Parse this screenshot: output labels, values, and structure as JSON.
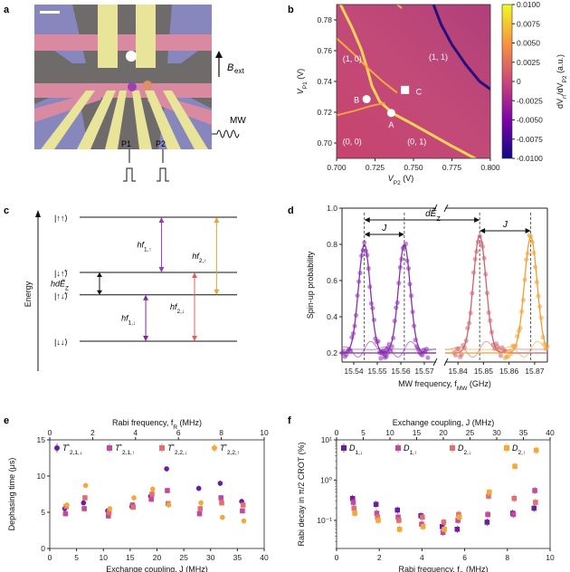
{
  "panel_labels": {
    "a": "a",
    "b": "b",
    "c": "c",
    "d": "d",
    "e": "e",
    "f": "f"
  },
  "panel_a": {
    "bext_label": "B",
    "bext_sub": "ext",
    "mw_label": "MW",
    "p1_label": "P1",
    "p2_label": "P2",
    "colors": {
      "gate_yellow": "#e8e49a",
      "gate_pink": "#d98aa0",
      "gate_blue": "#8c8ccc",
      "dot_purple": "#9b3fb5",
      "dot_orange": "#e09060"
    }
  },
  "chart_data": [
    {
      "panel": "b",
      "type": "heatmap",
      "xlabel": "V",
      "xlabel_sub": "P2",
      "xlabel_unit": " (V)",
      "ylabel": "V",
      "ylabel_sub": "P1",
      "ylabel_unit": " (V)",
      "xlim": [
        0.7,
        0.8
      ],
      "ylim": [
        0.69,
        0.79
      ],
      "x_ticks": [
        {
          "v": 0.7,
          "label": "0.700"
        },
        {
          "v": 0.725,
          "label": "0.725"
        },
        {
          "v": 0.75,
          "label": "0.750"
        },
        {
          "v": 0.775,
          "label": "0.775"
        },
        {
          "v": 0.8,
          "label": "0.800"
        }
      ],
      "y_ticks": [
        {
          "v": 0.7,
          "label": "0.70"
        },
        {
          "v": 0.72,
          "label": "0.72"
        },
        {
          "v": 0.74,
          "label": "0.74"
        },
        {
          "v": 0.76,
          "label": "0.76"
        },
        {
          "v": 0.78,
          "label": "0.78"
        }
      ],
      "colorbar": {
        "label": "dV",
        "label_sub": "rf",
        "label_tail": "/dV",
        "label_sub2": "P2",
        "label_unit": " (a.u.)",
        "min": -0.01,
        "max": 0.01,
        "ticks": [
          {
            "v": 0.01,
            "label": "0.0100"
          },
          {
            "v": 0.0075,
            "label": "0.0075"
          },
          {
            "v": 0.005,
            "label": "0.0050"
          },
          {
            "v": 0.0025,
            "label": "0.0025"
          },
          {
            "v": 0.0,
            "label": "0"
          },
          {
            "v": -0.0025,
            "label": "-0.0025"
          },
          {
            "v": -0.005,
            "label": "-0.0050"
          },
          {
            "v": -0.0075,
            "label": "-0.0075"
          },
          {
            "v": -0.01,
            "label": "-0.0100"
          }
        ]
      },
      "regions": [
        {
          "label": "(1, 0)",
          "x": 0.704,
          "y": 0.753
        },
        {
          "label": "(1, 1)",
          "x": 0.76,
          "y": 0.754
        },
        {
          "label": "(0, 0)",
          "x": 0.704,
          "y": 0.699
        },
        {
          "label": "(0, 1)",
          "x": 0.746,
          "y": 0.699
        }
      ],
      "markers": [
        {
          "label": "A",
          "x": 0.7355,
          "y": 0.7195,
          "shape": "circle",
          "label_dx": -3,
          "label_dy": 16
        },
        {
          "label": "B",
          "x": 0.7195,
          "y": 0.7285,
          "shape": "circle",
          "label_dx": -14,
          "label_dy": 4
        },
        {
          "label": "C",
          "x": 0.7445,
          "y": 0.7345,
          "shape": "square",
          "label_dx": 12,
          "label_dy": 5
        }
      ],
      "lines": [
        {
          "color": "#f5d35a",
          "width": 3,
          "points": [
            [
              0.7025,
              0.79
            ],
            [
              0.71,
              0.775
            ],
            [
              0.716,
              0.761
            ],
            [
              0.72,
              0.748
            ],
            [
              0.723,
              0.737
            ],
            [
              0.728,
              0.727
            ],
            [
              0.737,
              0.719
            ],
            [
              0.75,
              0.712
            ],
            [
              0.775,
              0.698
            ],
            [
              0.79,
              0.69
            ]
          ]
        },
        {
          "color": "#f4a83e",
          "width": 2,
          "points": [
            [
              0.7,
              0.768
            ],
            [
              0.71,
              0.759
            ],
            [
              0.72,
              0.749
            ],
            [
              0.73,
              0.74
            ],
            [
              0.739,
              0.733
            ]
          ]
        },
        {
          "color": "#f4a040",
          "width": 2,
          "points": [
            [
              0.7,
              0.718
            ],
            [
              0.712,
              0.721
            ],
            [
              0.722,
              0.724
            ],
            [
              0.731,
              0.726
            ]
          ]
        },
        {
          "color": "#f6b65a",
          "width": 2,
          "points": [
            [
              0.7395,
              0.79
            ],
            [
              0.741,
              0.7887
            ],
            [
              0.742,
              0.788
            ]
          ]
        },
        {
          "color": "#2a0f7a",
          "width": 3,
          "points": [
            [
              0.763,
              0.79
            ],
            [
              0.768,
              0.777
            ],
            [
              0.775,
              0.764
            ],
            [
              0.784,
              0.751
            ],
            [
              0.793,
              0.74
            ],
            [
              0.8,
              0.735
            ]
          ]
        }
      ]
    },
    {
      "panel": "c",
      "type": "diagram",
      "ylabel": "Energy",
      "levels": [
        {
          "ket": "|↑↑⟩",
          "y": 0.0
        },
        {
          "ket": "|↓↑̃⟩",
          "y": 0.37
        },
        {
          "ket": "|↑↓̃⟩",
          "y": 0.52
        },
        {
          "ket": "|↓↓⟩",
          "y": 0.83
        }
      ],
      "transitions": [
        {
          "label": "hf",
          "sub": "1,↑",
          "color": "#9b3fb5",
          "from": 0,
          "to": 1,
          "x": 0.52
        },
        {
          "label": "hf",
          "sub": "2,↑",
          "color": "#f0a030",
          "from": 0,
          "to": 2,
          "x": 0.87
        },
        {
          "label": "hf",
          "sub": "1,↓",
          "color": "#7a2a98",
          "from": 2,
          "to": 3,
          "x": 0.42
        },
        {
          "label": "hf",
          "sub": "2,↓",
          "color": "#e06060",
          "from": 1,
          "to": 3,
          "x": 0.73
        }
      ],
      "splitting_label": "hdẼ",
      "splitting_sub": "Z"
    },
    {
      "panel": "d",
      "type": "scatter",
      "ylabel": "Spin-up probability",
      "xlabel": "MW frequency, f",
      "xlabel_sub": "MW",
      "xlabel_unit": " (GHz)",
      "ylim": [
        0.15,
        1.0
      ],
      "y_ticks": [
        0.2,
        0.4,
        0.6,
        0.8,
        1.0
      ],
      "left_range": [
        15.535,
        15.575
      ],
      "right_range": [
        15.835,
        15.875
      ],
      "x_ticks_left": [
        {
          "v": 15.54,
          "label": "15.54"
        },
        {
          "v": 15.55,
          "label": "15.55"
        },
        {
          "v": 15.56,
          "label": "15.56"
        },
        {
          "v": 15.57,
          "label": "15.57"
        }
      ],
      "x_ticks_right": [
        {
          "v": 15.84,
          "label": "15.84"
        },
        {
          "v": 15.85,
          "label": "15.85"
        },
        {
          "v": 15.86,
          "label": "15.86"
        },
        {
          "v": 15.87,
          "label": "15.87"
        }
      ],
      "dashed_lines": [
        15.5445,
        15.5615,
        15.8485,
        15.8685
      ],
      "annotations": [
        {
          "label": "dẼ",
          "sub": "Z",
          "from": 15.5445,
          "to": 15.8485,
          "y": 0.935
        },
        {
          "label": "J",
          "from": 15.5445,
          "to": 15.5615,
          "y": 0.855
        },
        {
          "label": "J",
          "from": 15.8485,
          "to": 15.8685,
          "y": 0.875
        }
      ],
      "series": [
        {
          "name": "",
          "color": "#8b2fae",
          "center": 15.5445,
          "amp": 0.8,
          "width": 0.0025,
          "side": "left"
        },
        {
          "name": "",
          "color": "#8b2fae",
          "center": 15.5615,
          "amp": 0.8,
          "width": 0.0025,
          "side": "left"
        },
        {
          "name": "",
          "color": "#d06070",
          "center": 15.8485,
          "amp": 0.85,
          "width": 0.0025,
          "side": "right"
        },
        {
          "name": "",
          "color": "#f0a030",
          "center": 15.8685,
          "amp": 0.84,
          "width": 0.0025,
          "side": "right"
        }
      ]
    },
    {
      "panel": "e",
      "type": "scatter",
      "top_xlabel": "Rabi frequency, f",
      "top_xlabel_sub": "R",
      "top_xlabel_unit": " (MHz)",
      "xlabel": "Exchange coupling, J",
      "xlabel_unit": " (MHz)",
      "ylabel": "Dephasing time (μs)",
      "xlim": [
        0,
        40
      ],
      "ylim": [
        0,
        15
      ],
      "top_xlim": [
        0,
        10
      ],
      "x_ticks": [
        0,
        5,
        10,
        15,
        20,
        25,
        30,
        35,
        40
      ],
      "top_x_ticks": [
        0,
        2,
        4,
        6,
        8,
        10
      ],
      "y_ticks": [
        0,
        5,
        10,
        15
      ],
      "legend": [
        {
          "label": "T",
          "sup": "*",
          "sub": "2,1,↓",
          "color": "#6a1f9e",
          "shape": "circle"
        },
        {
          "label": "T",
          "sup": "*",
          "sub": "2,1,↑",
          "color": "#c04aa0",
          "shape": "square"
        },
        {
          "label": "T",
          "sup": "*",
          "sub": "2,2,↓",
          "color": "#e07070",
          "shape": "square"
        },
        {
          "label": "T",
          "sup": "*",
          "sub": "2,2,↑",
          "color": "#f2a83a",
          "shape": "circle"
        }
      ],
      "series": [
        {
          "color": "#6a1f9e",
          "shape": "circle",
          "points": [
            [
              3,
              5.5
            ],
            [
              6.5,
              6.3
            ],
            [
              11,
              5.2
            ],
            [
              15.5,
              5.8
            ],
            [
              19,
              7.2
            ],
            [
              22,
              11.0
            ],
            [
              28,
              8.3
            ],
            [
              32,
              9.0
            ],
            [
              36,
              6.5
            ]
          ]
        },
        {
          "color": "#c04aa0",
          "shape": "square",
          "points": [
            [
              3,
              4.8
            ],
            [
              6.5,
              5.5
            ],
            [
              11,
              4.5
            ],
            [
              15.5,
              6.0
            ],
            [
              19,
              6.8
            ],
            [
              22,
              8.0
            ],
            [
              28,
              4.8
            ],
            [
              32,
              7.0
            ],
            [
              36,
              5.2
            ]
          ]
        },
        {
          "color": "#e07070",
          "shape": "square",
          "points": [
            [
              3,
              5.8
            ],
            [
              6.5,
              7.0
            ],
            [
              11,
              5.0
            ],
            [
              15.5,
              5.7
            ],
            [
              19,
              7.5
            ],
            [
              22,
              6.2
            ],
            [
              28,
              5.5
            ],
            [
              32,
              6.3
            ],
            [
              36,
              6.0
            ]
          ]
        },
        {
          "color": "#f2a83a",
          "shape": "circle",
          "points": [
            [
              3,
              6.0
            ],
            [
              6.5,
              8.7
            ],
            [
              11,
              5.5
            ],
            [
              15.5,
              7.0
            ],
            [
              19,
              8.2
            ],
            [
              22,
              6.0
            ],
            [
              28,
              6.3
            ],
            [
              32,
              4.3
            ],
            [
              36,
              3.8
            ]
          ]
        }
      ]
    },
    {
      "panel": "f",
      "type": "scatter",
      "top_xlabel": "Exchange coupling, J",
      "top_xlabel_unit": " (MHz)",
      "xlabel": "Rabi frequency, f",
      "xlabel_sub": "R",
      "xlabel_unit": " (MHz)",
      "ylabel": "Rabi decay in π/2 CROT (%)",
      "xlim": [
        0,
        10
      ],
      "top_xlim": [
        0,
        40
      ],
      "ylog": true,
      "ylim": [
        0.02,
        10
      ],
      "x_ticks": [
        0,
        2,
        4,
        6,
        8,
        10
      ],
      "top_x_ticks": [
        0,
        5,
        10,
        15,
        20,
        25,
        30,
        35,
        40
      ],
      "y_ticks": [
        {
          "v": 0.1,
          "label": "10⁻¹"
        },
        {
          "v": 1,
          "label": "10⁰"
        },
        {
          "v": 10,
          "label": "10¹"
        }
      ],
      "legend": [
        {
          "label": "D",
          "sub": "1,↓",
          "color": "#6a1f9e",
          "shape": "square"
        },
        {
          "label": "D",
          "sub": "1,↑",
          "color": "#c04aa0",
          "shape": "square"
        },
        {
          "label": "D",
          "sub": "2,↓",
          "color": "#e07070",
          "shape": "square"
        },
        {
          "label": "D",
          "sub": "2,↑",
          "color": "#f2a83a",
          "shape": "square"
        }
      ],
      "series": [
        {
          "color": "#6a1f9e",
          "shape": "square",
          "points": [
            [
              0.8,
              0.35
            ],
            [
              1.9,
              0.25
            ],
            [
              2.9,
              0.18
            ],
            [
              4.0,
              0.13
            ],
            [
              5.0,
              0.07
            ],
            [
              5.7,
              0.06
            ],
            [
              7.1,
              0.09
            ],
            [
              8.3,
              0.15
            ],
            [
              9.3,
              0.2
            ]
          ]
        },
        {
          "color": "#c04aa0",
          "shape": "square",
          "points": [
            [
              0.8,
              0.28
            ],
            [
              1.9,
              0.15
            ],
            [
              2.9,
              0.12
            ],
            [
              4.0,
              0.08
            ],
            [
              5.0,
              0.05
            ],
            [
              5.7,
              0.1
            ],
            [
              7.1,
              0.14
            ],
            [
              8.3,
              0.14
            ],
            [
              9.3,
              0.55
            ]
          ]
        },
        {
          "color": "#e07070",
          "shape": "square",
          "points": [
            [
              0.8,
              0.2
            ],
            [
              1.9,
              0.12
            ],
            [
              2.9,
              0.1
            ],
            [
              4.0,
              0.12
            ],
            [
              5.0,
              0.09
            ],
            [
              5.7,
              0.14
            ],
            [
              7.1,
              0.4
            ],
            [
              8.3,
              0.35
            ],
            [
              9.3,
              0.28
            ]
          ]
        },
        {
          "color": "#f2a83a",
          "shape": "square",
          "points": [
            [
              0.8,
              0.15
            ],
            [
              1.9,
              0.1
            ],
            [
              2.9,
              0.06
            ],
            [
              4.0,
              0.07
            ],
            [
              5.0,
              0.06
            ],
            [
              5.7,
              0.12
            ],
            [
              7.1,
              0.5
            ],
            [
              8.3,
              2.2
            ],
            [
              9.3,
              5.5
            ]
          ]
        }
      ]
    }
  ]
}
